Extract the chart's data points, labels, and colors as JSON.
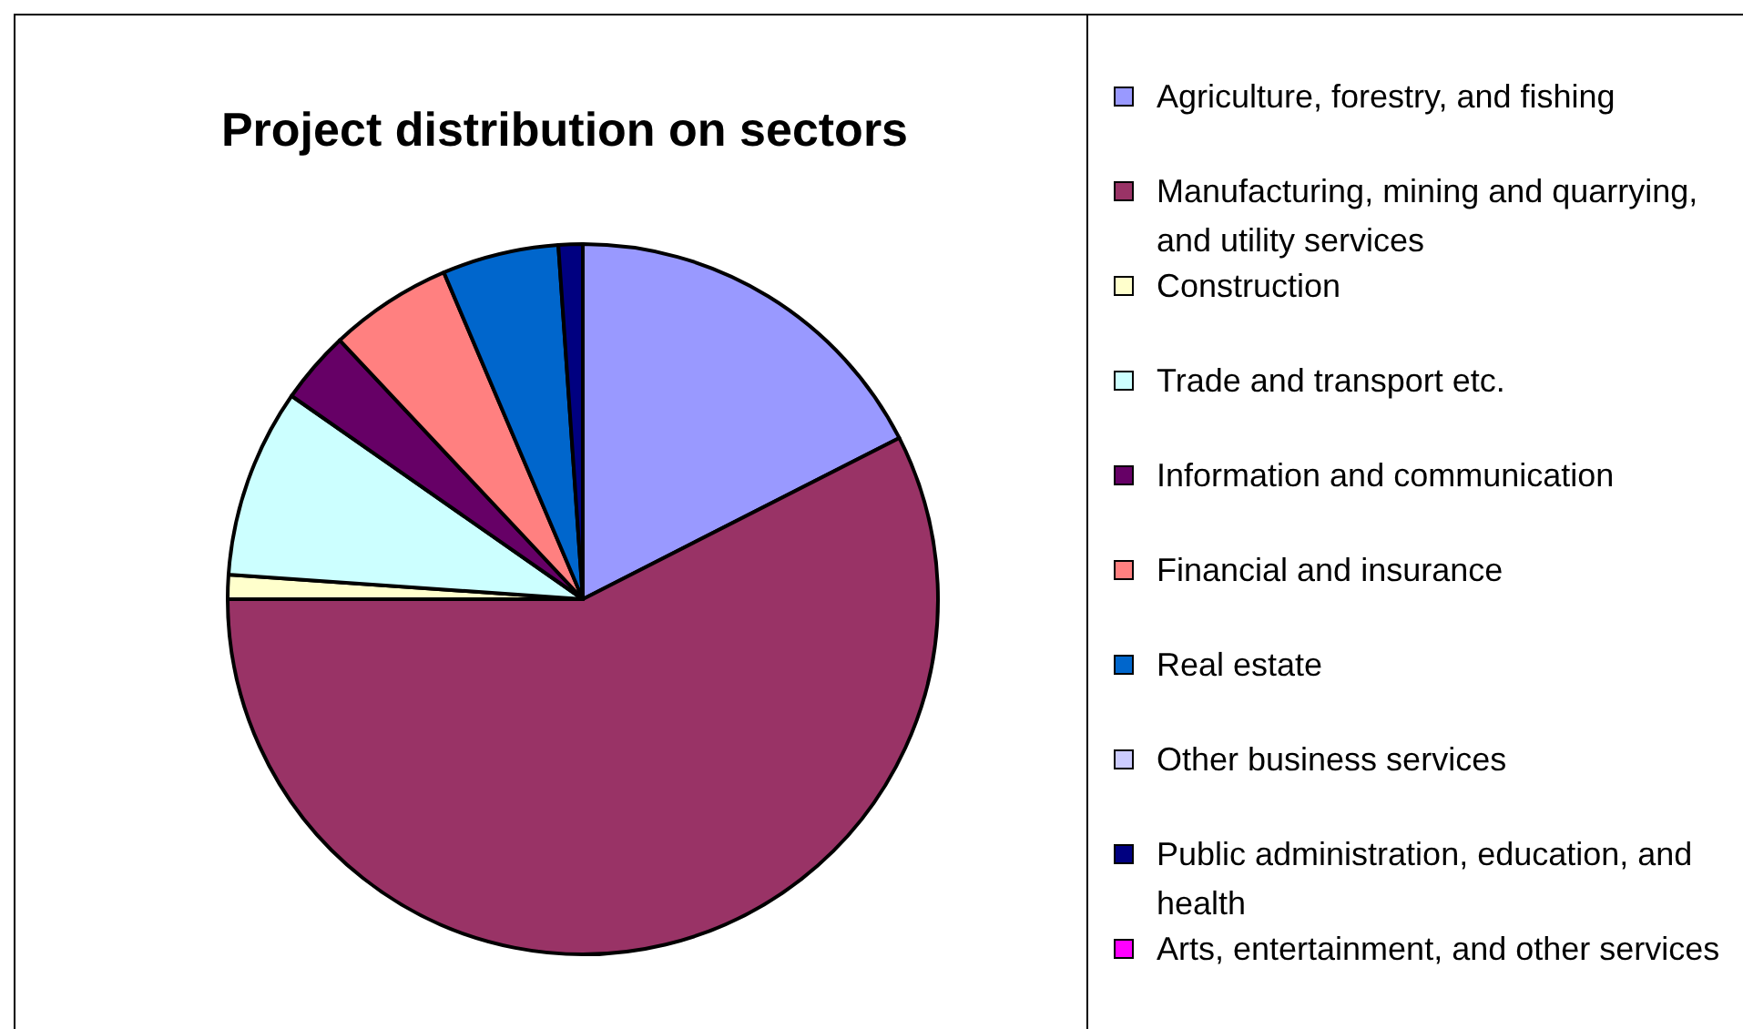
{
  "chart_data": {
    "type": "pie",
    "title": "Project distribution on sectors",
    "categories": [
      "Agriculture, forestry, and fishing",
      "Manufacturing, mining and quarrying, and utility services",
      "Construction",
      "Trade and transport etc.",
      "Information and communication",
      "Financial and insurance",
      "Real estate",
      "Other business services",
      "Public administration, education, and health",
      "Arts, entertainment, and other services"
    ],
    "values": [
      17.5,
      57.5,
      1.1,
      8.6,
      3.3,
      5.6,
      5.3,
      0,
      1.1,
      0
    ],
    "colors": [
      "#9999ff",
      "#993366",
      "#ffffcc",
      "#ccffff",
      "#660066",
      "#ff8080",
      "#0066cc",
      "#ccccff",
      "#000080",
      "#ff00ff"
    ],
    "legend": "right"
  }
}
